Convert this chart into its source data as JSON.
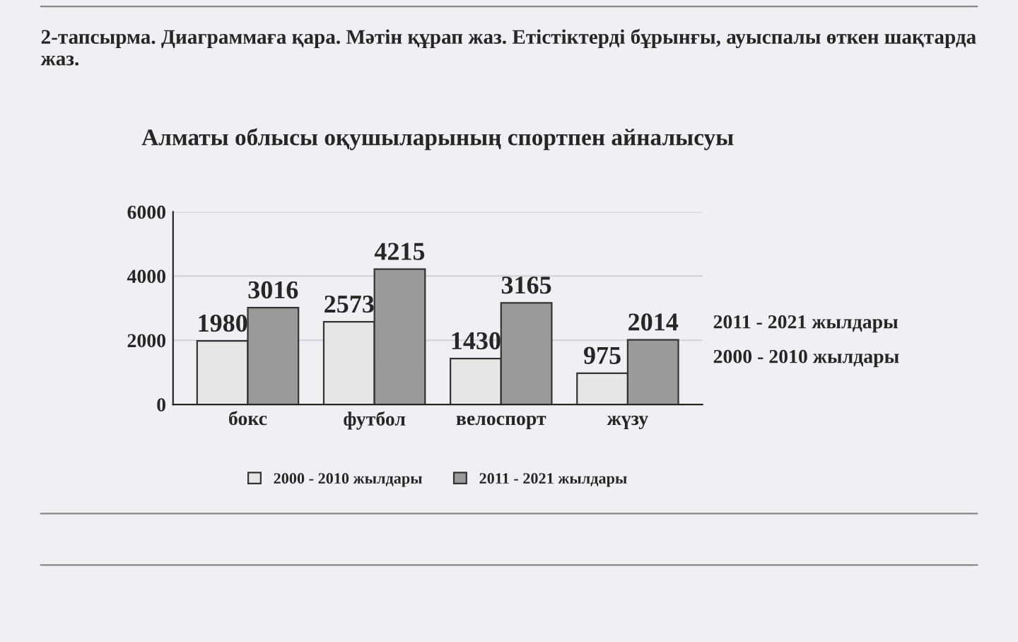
{
  "chart_data": {
    "type": "bar",
    "title": "Алматы облысы оқушыларының спортпен айналысуы",
    "annotations": [
      "2-тапсырма. Диаграммаға қара. Мәтін құрап жаз. Етістіктерді бұрынғы, ауыспалы өткен шақтарда жаз.",
      "2011 - 2021 жылдары",
      "2000 - 2010 жылдары"
    ],
    "categories": [
      "бокс",
      "футбол",
      "велоспорт",
      "жүзу"
    ],
    "series": [
      {
        "name": "2000 - 2010 жылдары",
        "color": "#e6e6e6",
        "values": [
          1980,
          2573,
          1430,
          975
        ]
      },
      {
        "name": "2011 - 2021 жылдары",
        "color": "#9a9a9a",
        "values": [
          3016,
          4215,
          3165,
          2014
        ]
      }
    ],
    "ylim": [
      0,
      6000
    ],
    "yticks": [
      0,
      2000,
      4000,
      6000
    ],
    "grid": "y",
    "legend": "bottom",
    "data_labels": true
  }
}
